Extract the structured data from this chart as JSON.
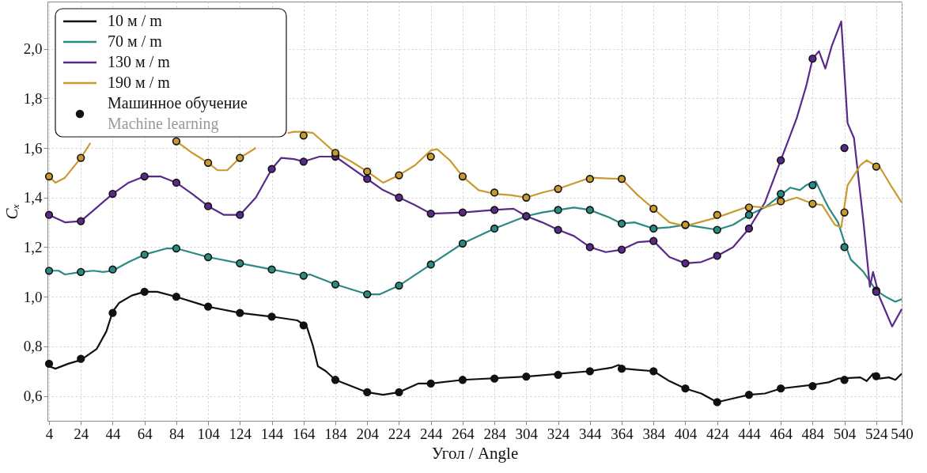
{
  "chart_data": {
    "type": "line",
    "xlabel": "Угол / Angle",
    "ylabel": "Cₓ",
    "xlim": [
      3,
      540
    ],
    "ylim": [
      0.5,
      2.19
    ],
    "xticks": [
      4,
      24,
      44,
      64,
      84,
      104,
      124,
      144,
      164,
      184,
      204,
      224,
      244,
      264,
      284,
      304,
      324,
      344,
      364,
      384,
      404,
      424,
      444,
      464,
      484,
      504,
      524,
      540
    ],
    "yticks": [
      {
        "value": 0.6,
        "label": "0,6"
      },
      {
        "value": 0.8,
        "label": "0,8"
      },
      {
        "value": 1.0,
        "label": "1,0"
      },
      {
        "value": 1.2,
        "label": "1,2"
      },
      {
        "value": 1.4,
        "label": "1,4"
      },
      {
        "value": 1.6,
        "label": "1,6"
      },
      {
        "value": 1.8,
        "label": "1,8"
      },
      {
        "value": 2.0,
        "label": "2,0"
      }
    ],
    "grid": true,
    "legend": "top left",
    "series": [
      {
        "name": "10 м / m",
        "color": "#111111",
        "type": "line",
        "x": [
          4,
          8,
          16,
          24,
          34,
          40,
          44,
          48,
          56,
          64,
          72,
          84,
          104,
          124,
          144,
          160,
          166,
          170,
          173,
          178,
          184,
          204,
          214,
          224,
          236,
          244,
          264,
          304,
          344,
          358,
          362,
          366,
          374,
          384,
          394,
          404,
          414,
          424,
          434,
          444,
          454,
          464,
          484,
          494,
          500,
          514,
          518,
          522,
          526,
          532,
          536,
          540
        ],
        "values": [
          0.72,
          0.71,
          0.73,
          0.745,
          0.79,
          0.86,
          0.94,
          0.975,
          1.005,
          1.02,
          1.02,
          1.0,
          0.96,
          0.935,
          0.92,
          0.905,
          0.88,
          0.8,
          0.72,
          0.7,
          0.665,
          0.615,
          0.605,
          0.615,
          0.65,
          0.65,
          0.665,
          0.678,
          0.7,
          0.715,
          0.725,
          0.71,
          0.705,
          0.7,
          0.66,
          0.63,
          0.61,
          0.575,
          0.59,
          0.605,
          0.61,
          0.63,
          0.645,
          0.655,
          0.67,
          0.675,
          0.66,
          0.69,
          0.67,
          0.675,
          0.665,
          0.69
        ]
      },
      {
        "name": "70 м / m",
        "color": "#2a8a84",
        "type": "line",
        "x": [
          4,
          10,
          14,
          24,
          32,
          38,
          44,
          54,
          64,
          78,
          84,
          104,
          124,
          144,
          164,
          168,
          184,
          204,
          212,
          224,
          244,
          264,
          284,
          304,
          314,
          334,
          344,
          356,
          364,
          372,
          384,
          394,
          404,
          414,
          424,
          434,
          444,
          454,
          464,
          470,
          476,
          480,
          486,
          490,
          494,
          500,
          504,
          508,
          516,
          524,
          530,
          536,
          540
        ],
        "values": [
          1.105,
          1.105,
          1.09,
          1.1,
          1.105,
          1.1,
          1.105,
          1.14,
          1.17,
          1.195,
          1.195,
          1.16,
          1.135,
          1.11,
          1.085,
          1.09,
          1.05,
          1.01,
          1.01,
          1.045,
          1.13,
          1.215,
          1.275,
          1.325,
          1.34,
          1.36,
          1.35,
          1.32,
          1.295,
          1.3,
          1.275,
          1.28,
          1.29,
          1.28,
          1.27,
          1.29,
          1.33,
          1.36,
          1.41,
          1.44,
          1.43,
          1.45,
          1.465,
          1.41,
          1.36,
          1.3,
          1.22,
          1.15,
          1.1,
          1.025,
          1.0,
          0.98,
          0.99
        ]
      },
      {
        "name": "130 м / m",
        "color": "#5a2a8a",
        "type": "line",
        "x": [
          4,
          14,
          24,
          34,
          44,
          54,
          64,
          74,
          84,
          94,
          104,
          114,
          124,
          134,
          144,
          150,
          158,
          164,
          174,
          184,
          194,
          204,
          214,
          224,
          234,
          244,
          264,
          284,
          296,
          304,
          314,
          324,
          334,
          344,
          354,
          364,
          374,
          384,
          394,
          404,
          414,
          424,
          434,
          444,
          454,
          464,
          474,
          480,
          484,
          488,
          492,
          496,
          502,
          506,
          510,
          516,
          520,
          522,
          526,
          530,
          534,
          540
        ],
        "values": [
          1.33,
          1.3,
          1.305,
          1.36,
          1.415,
          1.46,
          1.485,
          1.485,
          1.46,
          1.415,
          1.365,
          1.33,
          1.33,
          1.4,
          1.515,
          1.56,
          1.555,
          1.545,
          1.565,
          1.565,
          1.52,
          1.475,
          1.43,
          1.4,
          1.37,
          1.335,
          1.34,
          1.35,
          1.355,
          1.325,
          1.3,
          1.27,
          1.245,
          1.2,
          1.18,
          1.19,
          1.22,
          1.225,
          1.16,
          1.135,
          1.14,
          1.165,
          1.2,
          1.275,
          1.38,
          1.55,
          1.72,
          1.85,
          1.96,
          1.99,
          1.92,
          2.01,
          2.11,
          1.7,
          1.64,
          1.3,
          1.04,
          1.1,
          1.0,
          0.94,
          0.88,
          0.95
        ]
      },
      {
        "name": "190 м / m",
        "color": "#c89a30",
        "type": "line",
        "x": [
          4,
          8,
          14,
          24,
          30,
          50,
          84,
          94,
          104,
          110,
          116,
          124,
          134,
          144,
          154,
          158,
          164,
          170,
          184,
          194,
          204,
          214,
          224,
          234,
          244,
          248,
          256,
          264,
          274,
          284,
          294,
          304,
          314,
          324,
          344,
          364,
          374,
          384,
          394,
          404,
          424,
          444,
          454,
          464,
          474,
          484,
          490,
          498,
          502,
          506,
          514,
          518,
          522,
          526,
          534,
          540
        ],
        "values": [
          1.485,
          1.46,
          1.48,
          1.56,
          1.62,
          null,
          1.627,
          1.58,
          1.54,
          1.51,
          1.51,
          1.56,
          1.6,
          null,
          1.66,
          1.665,
          1.665,
          1.66,
          1.58,
          1.545,
          1.505,
          1.46,
          1.49,
          1.53,
          1.59,
          1.595,
          1.55,
          1.485,
          1.43,
          1.415,
          1.41,
          1.4,
          1.42,
          1.435,
          1.48,
          1.475,
          1.41,
          1.355,
          1.3,
          1.285,
          1.32,
          1.365,
          1.36,
          1.38,
          1.4,
          1.375,
          1.37,
          1.29,
          1.28,
          1.45,
          1.53,
          1.55,
          1.535,
          1.525,
          1.44,
          1.38
        ]
      },
      {
        "name": "Машинное обучение\nMachine learning",
        "color": "#111111",
        "type": "scatter",
        "marker": "circle",
        "x": [
          4,
          24,
          44,
          64,
          84,
          104,
          124,
          144,
          164,
          184,
          204,
          224,
          244,
          264,
          284,
          304,
          324,
          344,
          364,
          384,
          404,
          424,
          444,
          464,
          484,
          504,
          524,
          4,
          24,
          44,
          64,
          84,
          104,
          124,
          144,
          164,
          184,
          204,
          224,
          244,
          264,
          284,
          304,
          324,
          344,
          364,
          384,
          404,
          424,
          444,
          464,
          484,
          504,
          524,
          4,
          24,
          44,
          64,
          84,
          104,
          124,
          144,
          164,
          184,
          204,
          224,
          244,
          264,
          284,
          304,
          324,
          344,
          364,
          384,
          404,
          424,
          444,
          464,
          484,
          504,
          524,
          4,
          24,
          84,
          104,
          124,
          164,
          184,
          204,
          224,
          244,
          264,
          284,
          304,
          324,
          344,
          364,
          384,
          404,
          424,
          444,
          464,
          484,
          504,
          524
        ],
        "values": [
          0.73,
          0.75,
          0.935,
          1.02,
          1.0,
          0.96,
          0.935,
          0.92,
          0.885,
          0.665,
          0.615,
          0.615,
          0.65,
          0.665,
          0.67,
          0.678,
          0.685,
          0.7,
          0.71,
          0.7,
          0.63,
          0.575,
          0.605,
          0.63,
          0.64,
          0.665,
          0.68,
          1.105,
          1.1,
          1.11,
          1.17,
          1.195,
          1.16,
          1.135,
          1.11,
          1.085,
          1.05,
          1.01,
          1.045,
          1.13,
          1.215,
          1.275,
          1.325,
          1.35,
          1.35,
          1.295,
          1.275,
          1.29,
          1.27,
          1.33,
          1.415,
          1.45,
          1.2,
          1.025,
          1.33,
          1.305,
          1.415,
          1.485,
          1.46,
          1.365,
          1.33,
          1.515,
          1.545,
          1.565,
          1.475,
          1.4,
          1.335,
          1.34,
          1.35,
          1.325,
          1.27,
          1.2,
          1.19,
          1.225,
          1.135,
          1.165,
          1.275,
          1.55,
          1.96,
          1.6,
          1.02,
          1.485,
          1.56,
          1.627,
          1.54,
          1.56,
          1.65,
          1.58,
          1.505,
          1.49,
          1.565,
          1.485,
          1.42,
          1.4,
          1.435,
          1.475,
          1.475,
          1.355,
          1.29,
          1.33,
          1.36,
          1.385,
          1.375,
          1.34,
          1.525
        ],
        "colors": [
          "#111111",
          "#111111",
          "#111111",
          "#111111",
          "#111111",
          "#111111",
          "#111111",
          "#111111",
          "#111111",
          "#111111",
          "#111111",
          "#111111",
          "#111111",
          "#111111",
          "#111111",
          "#111111",
          "#111111",
          "#111111",
          "#111111",
          "#111111",
          "#111111",
          "#111111",
          "#111111",
          "#111111",
          "#111111",
          "#111111",
          "#111111",
          "#2a8a84",
          "#2a8a84",
          "#2a8a84",
          "#2a8a84",
          "#2a8a84",
          "#2a8a84",
          "#2a8a84",
          "#2a8a84",
          "#2a8a84",
          "#2a8a84",
          "#2a8a84",
          "#2a8a84",
          "#2a8a84",
          "#2a8a84",
          "#2a8a84",
          "#2a8a84",
          "#2a8a84",
          "#2a8a84",
          "#2a8a84",
          "#2a8a84",
          "#2a8a84",
          "#2a8a84",
          "#2a8a84",
          "#2a8a84",
          "#2a8a84",
          "#2a8a84",
          "#2a8a84",
          "#5a2a8a",
          "#5a2a8a",
          "#5a2a8a",
          "#5a2a8a",
          "#5a2a8a",
          "#5a2a8a",
          "#5a2a8a",
          "#5a2a8a",
          "#5a2a8a",
          "#5a2a8a",
          "#5a2a8a",
          "#5a2a8a",
          "#5a2a8a",
          "#5a2a8a",
          "#5a2a8a",
          "#5a2a8a",
          "#5a2a8a",
          "#5a2a8a",
          "#5a2a8a",
          "#5a2a8a",
          "#5a2a8a",
          "#5a2a8a",
          "#5a2a8a",
          "#5a2a8a",
          "#5a2a8a",
          "#5a2a8a",
          "#5a2a8a",
          "#c89a30",
          "#c89a30",
          "#c89a30",
          "#c89a30",
          "#c89a30",
          "#c89a30",
          "#c89a30",
          "#c89a30",
          "#c89a30",
          "#c89a30",
          "#c89a30",
          "#c89a30",
          "#c89a30",
          "#c89a30",
          "#c89a30",
          "#c89a30",
          "#c89a30",
          "#c89a30",
          "#c89a30",
          "#c89a30",
          "#c89a30",
          "#c89a30",
          "#c89a30",
          "#c89a30"
        ]
      }
    ]
  }
}
